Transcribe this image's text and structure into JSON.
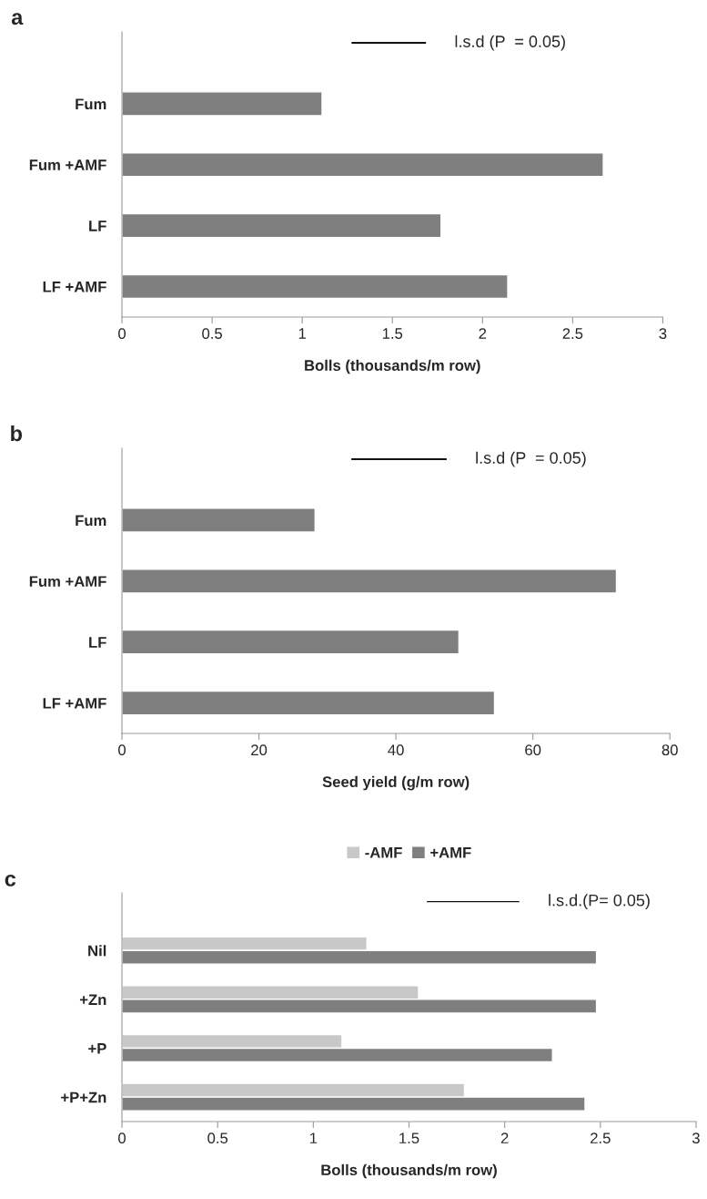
{
  "chart_data": [
    {
      "type": "bar",
      "orientation": "horizontal",
      "title": "a",
      "xlabel": "Bolls (thousands/m row)",
      "categories": [
        null,
        "Fum",
        "Fum +AMF",
        "LF",
        "LF +AMF"
      ],
      "series": [
        {
          "color": "#7f7f7f",
          "values": [
            null,
            1.11,
            2.67,
            1.77,
            2.14
          ]
        },
        {
          "name": "l.s.d (P  = 0.05)",
          "color": "#111111",
          "base": [
            1.27,
            null,
            null,
            null,
            null
          ],
          "values": [
            0.42,
            null,
            null,
            null,
            null
          ]
        }
      ],
      "xlim": [
        0,
        3
      ],
      "xticks": [
        0,
        0.5,
        1,
        1.5,
        2,
        2.5,
        3
      ],
      "grid": false,
      "legend": false
    },
    {
      "type": "bar",
      "orientation": "horizontal",
      "title": "b",
      "xlabel": "Seed yield (g/m row)",
      "categories": [
        null,
        "Fum",
        "Fum +AMF",
        "LF",
        "LF +AMF"
      ],
      "series": [
        {
          "color": "#7f7f7f",
          "values": [
            null,
            28.2,
            72.2,
            49.2,
            54.4
          ]
        },
        {
          "name": "l.s.d (P  = 0.05)",
          "color": "#111111",
          "base": [
            33.4,
            null,
            null,
            null,
            null
          ],
          "values": [
            14.1,
            null,
            null,
            null,
            null
          ]
        }
      ],
      "xlim": [
        0,
        80
      ],
      "xticks": [
        0,
        20,
        40,
        60,
        80
      ],
      "grid": false,
      "legend": false
    },
    {
      "type": "bar",
      "orientation": "horizontal",
      "title": "c",
      "xlabel": "Bolls (thousands/m row)",
      "categories": [
        null,
        "Nil",
        "+Zn",
        "+P",
        "+P+Zn"
      ],
      "series": [
        {
          "name": "-AMF",
          "color": "#c8c8c8",
          "values": [
            null,
            1.28,
            1.55,
            1.15,
            1.79
          ]
        },
        {
          "name": "+AMF",
          "color": "#7f7f7f",
          "values": [
            null,
            2.48,
            2.48,
            2.25,
            2.42
          ]
        },
        {
          "name": "l.s.d.(P= 0.05)",
          "color": "#111111",
          "base": [
            1.59,
            null,
            null,
            null,
            null
          ],
          "values": [
            0.49,
            null,
            null,
            null,
            null
          ]
        }
      ],
      "xlim": [
        0,
        3
      ],
      "xticks": [
        0,
        0.5,
        1,
        1.5,
        2,
        2.5,
        3
      ],
      "grid": false,
      "legend": "top"
    }
  ]
}
